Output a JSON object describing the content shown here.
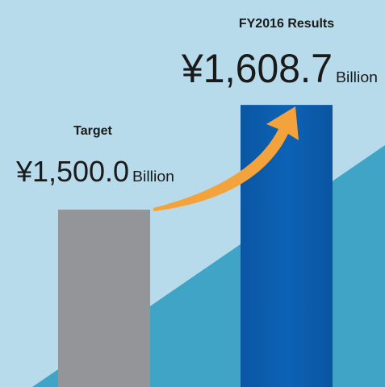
{
  "chart_data": {
    "type": "bar",
    "categories": [
      "Target",
      "FY2016 Results"
    ],
    "values": [
      1500.0,
      1608.7
    ],
    "value_labels": [
      "¥1,500.0",
      "¥1,608.7"
    ],
    "unit": "Billion",
    "colors": [
      "#939598",
      "#0d5fb1"
    ],
    "ylim": [
      1316,
      1700
    ]
  }
}
